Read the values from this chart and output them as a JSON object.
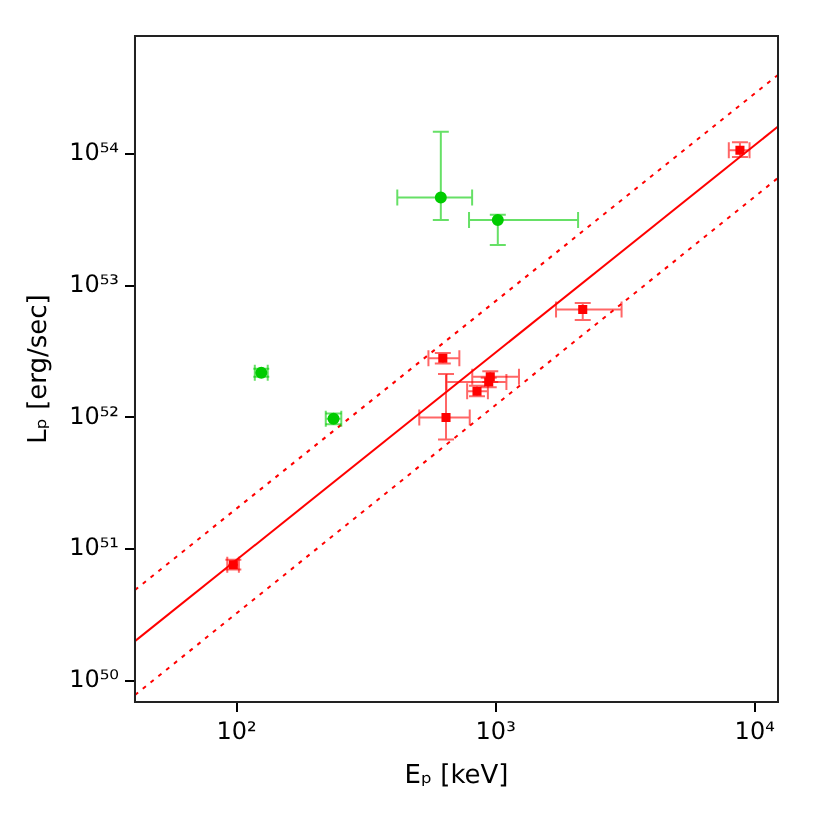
{
  "chart_data": {
    "type": "scatter",
    "xlabel": "Eₚ [keV]",
    "ylabel": "Lₚ [erg/sec]",
    "log": "xy",
    "grid": false,
    "legend": false,
    "xlim": [
      40.5,
      12300
    ],
    "xticks": [
      {
        "value": 100,
        "label": "10²"
      },
      {
        "value": 1000,
        "label": "10³"
      },
      {
        "value": 10000,
        "label": "10⁴"
      }
    ],
    "ylim": [
      6.9e+49,
      7.9e+54
    ],
    "yticks": [
      {
        "value": 1e+50,
        "label": "10⁵⁰"
      },
      {
        "value": 1e+51,
        "label": "10⁵¹"
      },
      {
        "value": 1e+52,
        "label": "10⁵²"
      },
      {
        "value": 1e+53,
        "label": "10⁵³"
      },
      {
        "value": 1e+54,
        "label": "10⁵⁴"
      }
    ],
    "series": [
      {
        "color": "#00cc00",
        "marker": "circle",
        "x": [
          614,
          1019,
          124.5,
          236.6
        ],
        "values": [
          4.68e+53,
          3.16e+53,
          2.19e+52,
          9.77e+51
        ],
        "xerrors": [
          [
            417,
            811
          ],
          [
            789,
            2080
          ],
          [
            117.5,
            131.8
          ],
          [
            220.8,
            253.5
          ]
        ],
        "errors": [
          [
            3.16e+53,
            1.48e+54
          ],
          [
            2.04e+53,
            3.47e+53
          ],
          [
            2.04e+52,
            2.34e+52
          ],
          [
            8.9e+51,
            1.07e+52
          ]
        ]
      },
      {
        "color": "#ff0000",
        "marker": "square",
        "x": [
          97.1,
          625,
          643,
          2168,
          8770,
          953,
          940,
          847
        ],
        "values": [
          7.6e+50,
          2.82e+52,
          1e+52,
          6.6e+52,
          1.07e+54,
          2.04e+52,
          1.86e+52,
          1.58e+52
        ],
        "xerrors": [
          [
            92,
            102
          ],
          [
            550,
            724
          ],
          [
            507,
            794
          ],
          [
            1710,
            3062
          ],
          [
            7943,
            9550
          ],
          [
            812,
            1230
          ],
          [
            646,
            1100
          ],
          [
            776,
            933
          ]
        ],
        "errors": [
          [
            7e+50,
            8.3e+50
          ],
          [
            2.57e+52,
            3.09e+52
          ],
          [
            6.8e+51,
            2.14e+52
          ],
          [
            5.5e+52,
            7.4e+52
          ],
          [
            9.5e+53,
            1.23e+54
          ],
          [
            1.86e+52,
            2.24e+52
          ],
          [
            1.7e+52,
            2e+52
          ],
          [
            1.45e+52,
            1.74e+52
          ]
        ]
      },
      {
        "type": "line",
        "color": "#ff0000",
        "line_style": "solid",
        "marker": "none",
        "x": [
          40.5,
          12300
        ],
        "values": [
          2e+50,
          1.62e+54
        ]
      },
      {
        "type": "line",
        "color": "#ff0000",
        "line_style": "dotted",
        "marker": "none",
        "x": [
          40.5,
          12300
        ],
        "values": [
          4.9e+50,
          4e+54
        ]
      },
      {
        "type": "line",
        "color": "#ff0000",
        "line_style": "dotted",
        "marker": "none",
        "x": [
          40.5,
          12300
        ],
        "values": [
          7.8e+49,
          6.6e+53
        ]
      }
    ]
  }
}
